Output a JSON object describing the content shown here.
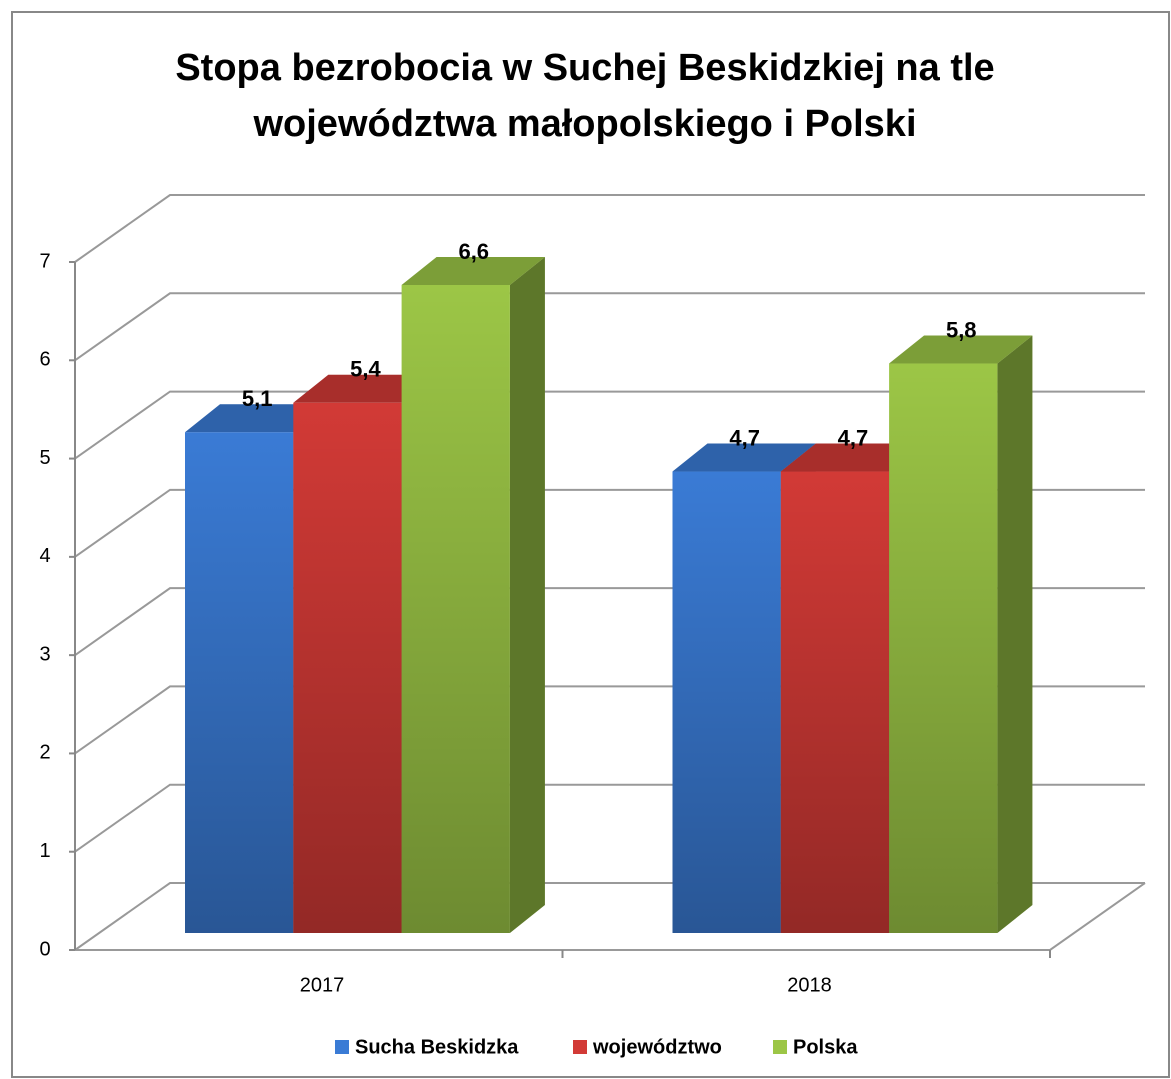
{
  "chart_data": {
    "type": "bar3d",
    "title": "Stopa bezrobocia w Suchej Beskidzkiej na tle województwa małopolskiego i Polski",
    "categories": [
      "2017",
      "2018"
    ],
    "series": [
      {
        "name": "Sucha Beskidzka",
        "color": "#3a7bd5",
        "values": [
          5.1,
          4.7
        ],
        "value_labels": [
          "5,1",
          "4,7"
        ]
      },
      {
        "name": "województwo",
        "color": "#d23a36",
        "values": [
          5.4,
          4.7
        ],
        "value_labels": [
          "5,4",
          "4,7"
        ]
      },
      {
        "name": "Polska",
        "color": "#9cc646",
        "values": [
          6.6,
          5.8
        ],
        "value_labels": [
          "6,6",
          "5,8"
        ]
      }
    ],
    "ylim": [
      0,
      7
    ],
    "yticks": [
      0,
      1,
      2,
      3,
      4,
      5,
      6,
      7
    ],
    "grid": true,
    "legend": "bottom"
  }
}
